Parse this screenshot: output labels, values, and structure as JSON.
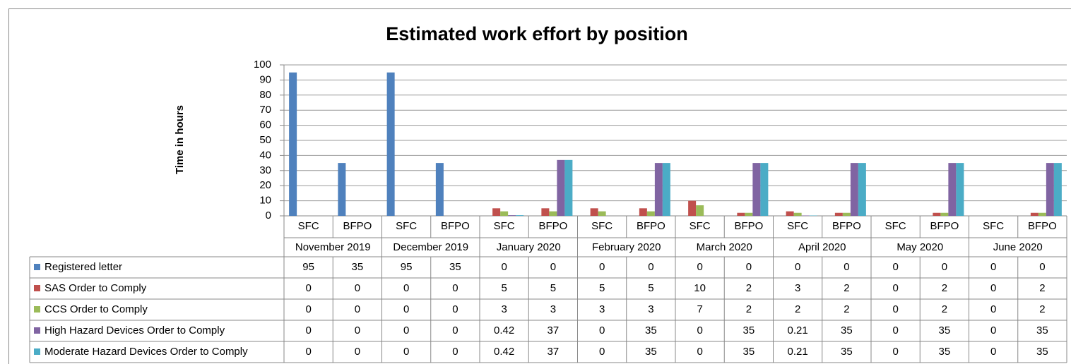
{
  "chart_data": {
    "type": "bar",
    "title": "Estimated work effort by position",
    "y_label": "Time in hours",
    "categories": [
      "SFC",
      "BFPO",
      "SFC",
      "BFPO",
      "SFC",
      "BFPO",
      "SFC",
      "BFPO",
      "SFC",
      "BFPO",
      "SFC",
      "BFPO",
      "SFC",
      "BFPO",
      "SFC",
      "BFPO"
    ],
    "category_groups": [
      "November 2019",
      "December 2019",
      "January 2020",
      "February 2020",
      "March 2020",
      "April 2020",
      "May 2020",
      "June 2020"
    ],
    "ylim": [
      0,
      100
    ],
    "yticks": [
      0,
      10,
      20,
      30,
      40,
      50,
      60,
      70,
      80,
      90,
      100
    ],
    "grid": true,
    "series": [
      {
        "name": "Registered letter",
        "color": "#4f81bd",
        "values": [
          95,
          35,
          95,
          35,
          0,
          0,
          0,
          0,
          0,
          0,
          0,
          0,
          0,
          0,
          0,
          0
        ]
      },
      {
        "name": "SAS Order to Comply",
        "color": "#c0504d",
        "values": [
          0,
          0,
          0,
          0,
          5,
          5,
          5,
          5,
          10,
          2,
          3,
          2,
          0,
          2,
          0,
          2
        ]
      },
      {
        "name": "CCS Order to Comply",
        "color": "#9bbb59",
        "values": [
          0,
          0,
          0,
          0,
          3,
          3,
          3,
          3,
          7,
          2,
          2,
          2,
          0,
          2,
          0,
          2
        ]
      },
      {
        "name": "High Hazard Devices Order to Comply",
        "color": "#8064a2",
        "values": [
          0,
          0,
          0,
          0,
          0.42,
          37,
          0,
          35,
          0,
          35,
          0.21,
          35,
          0,
          35,
          0,
          35
        ]
      },
      {
        "name": "Moderate Hazard Devices Order to Comply",
        "color": "#4bacc6",
        "values": [
          0,
          0,
          0,
          0,
          0.42,
          37,
          0,
          35,
          0,
          35,
          0.21,
          35,
          0,
          35,
          0,
          35
        ]
      }
    ]
  }
}
